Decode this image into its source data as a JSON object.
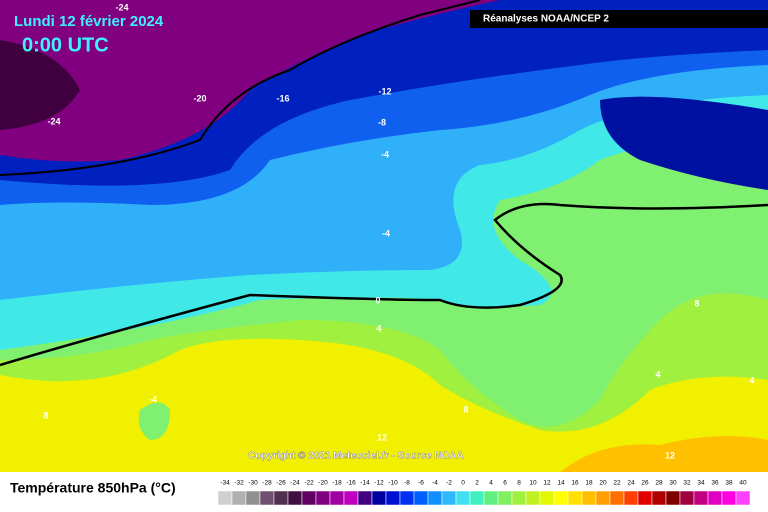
{
  "header": {
    "date": "Lundi 12 février 2024",
    "time": "0:00 UTC",
    "source": "Réanalyses NOAA/NCEP 2"
  },
  "contour_labels": [
    -24,
    -20,
    -16,
    -12,
    -24,
    -8,
    -4,
    -4,
    0,
    4,
    8,
    -4,
    8,
    12,
    8,
    4,
    4,
    12
  ],
  "copyright": "Copyright © 2021 Meteociel.fr - Source NOAA",
  "legend": {
    "title": "Température 850hPa (°C)",
    "ticks": [
      -34,
      -32,
      -30,
      -28,
      -26,
      -24,
      -22,
      -20,
      -18,
      -16,
      -14,
      -12,
      -10,
      -8,
      -6,
      -4,
      -2,
      0,
      2,
      4,
      6,
      8,
      10,
      12,
      14,
      16,
      18,
      20,
      22,
      24,
      26,
      28,
      30,
      32,
      34,
      36,
      38,
      40
    ],
    "colors": [
      "#d0d0d0",
      "#b0b0b0",
      "#909090",
      "#705070",
      "#503050",
      "#401040",
      "#600060",
      "#800080",
      "#a000a0",
      "#c000c0",
      "#400080",
      "#0000a0",
      "#0010d0",
      "#0030f0",
      "#0060ff",
      "#1090ff",
      "#30b8ff",
      "#40e0f0",
      "#40f0c0",
      "#60f080",
      "#80f060",
      "#a0f040",
      "#c0f020",
      "#e0f800",
      "#ffff00",
      "#ffe000",
      "#ffc000",
      "#ffa000",
      "#ff7000",
      "#ff4000",
      "#e00000",
      "#b00000",
      "#800000",
      "#a00040",
      "#c00080",
      "#e000c0",
      "#ff00e0",
      "#ff40ff"
    ]
  }
}
